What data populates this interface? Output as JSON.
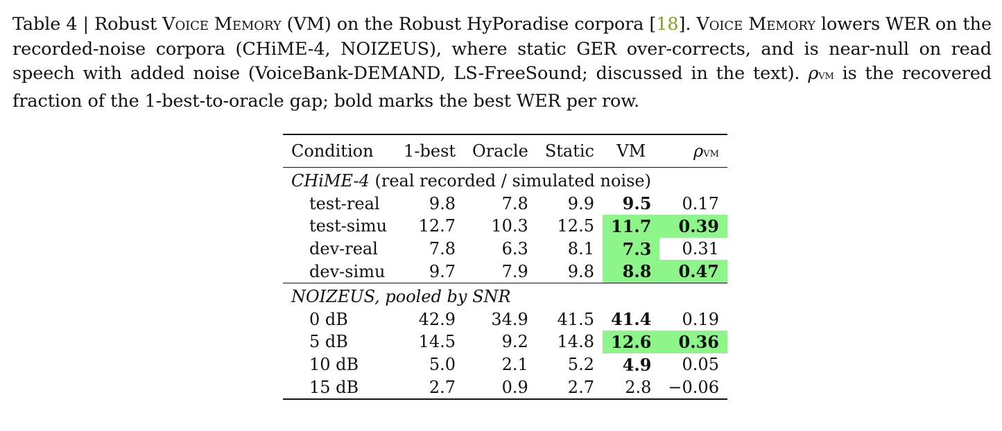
{
  "caption": {
    "prefix": "Table 4 | Robust ",
    "vm_name_1": "Voice Memory",
    "mid1": " (VM) on the Robust HyPoradise corpora [",
    "cite": "18",
    "mid2": "]. ",
    "vm_name_2": "Voice Memory",
    "mid3": " lowers WER on the recorded-noise corpora (CHiME-4, NOIZEUS), where static GER over-corrects, and is near-null on read speech with added noise (VoiceBank-DEMAND, LS-FreeSound; discussed in the text). ",
    "rho_symbol": "ρ",
    "rho_sub": "VM",
    "suffix": " is the recovered fraction of the 1-best-to-oracle gap; bold marks the best WER per row."
  },
  "table": {
    "headers": [
      "Condition",
      "1-best",
      "Oracle",
      "Static",
      "VM",
      "ρ",
      "VM"
    ],
    "highlight_color": "#8ef58a",
    "groups": [
      {
        "title_italic": "CHiME-4",
        "title_rest": " (real recorded / simulated noise)",
        "rows": [
          {
            "cond": "test-real",
            "one_best": "9.8",
            "oracle": "7.8",
            "static": "9.9",
            "vm": "9.5",
            "rho": "0.17"
          },
          {
            "cond": "test-simu",
            "one_best": "12.7",
            "oracle": "10.3",
            "static": "12.5",
            "vm": "11.7",
            "rho": "0.39"
          },
          {
            "cond": "dev-real",
            "one_best": "7.8",
            "oracle": "6.3",
            "static": "8.1",
            "vm": "7.3",
            "rho": "0.31"
          },
          {
            "cond": "dev-simu",
            "one_best": "9.7",
            "oracle": "7.9",
            "static": "9.8",
            "vm": "8.8",
            "rho": "0.47"
          }
        ]
      },
      {
        "title_italic": "NOIZEUS, pooled by SNR",
        "title_rest": "",
        "rows": [
          {
            "cond": "0 dB",
            "one_best": "42.9",
            "oracle": "34.9",
            "static": "41.5",
            "vm": "41.4",
            "rho": "0.19"
          },
          {
            "cond": "5 dB",
            "one_best": "14.5",
            "oracle": "9.2",
            "static": "14.8",
            "vm": "12.6",
            "rho": "0.36"
          },
          {
            "cond": "10 dB",
            "one_best": "5.0",
            "oracle": "2.1",
            "static": "5.2",
            "vm": "4.9",
            "rho": "0.05"
          },
          {
            "cond": "15 dB",
            "one_best": "2.7",
            "oracle": "0.9",
            "static": "2.7",
            "vm": "2.8",
            "rho": "−0.06"
          }
        ]
      }
    ]
  }
}
